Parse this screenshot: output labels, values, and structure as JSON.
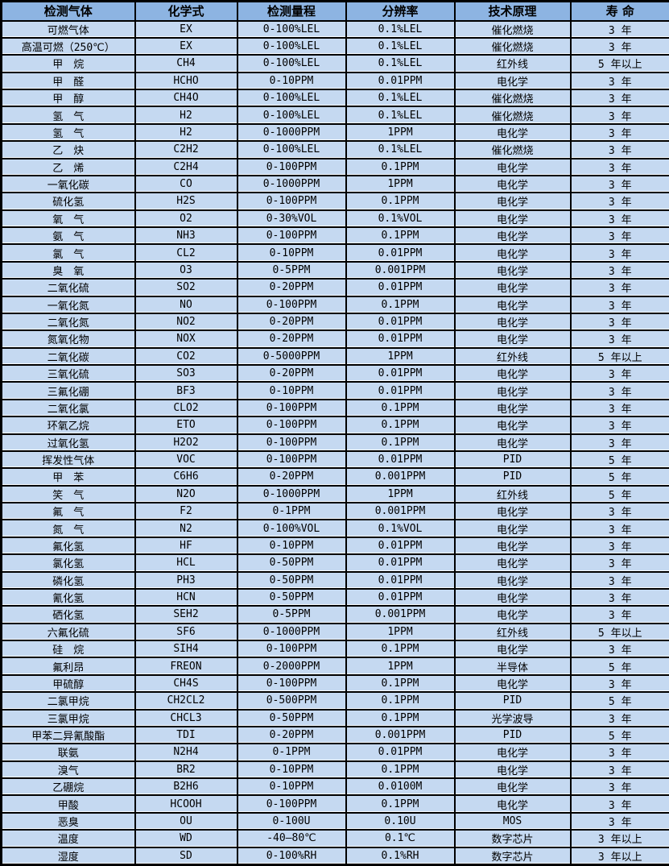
{
  "colors": {
    "header_bg": "#8db4e2",
    "row_bg": "#c5d9f1",
    "border": "#000000",
    "text": "#000000"
  },
  "table": {
    "columns": [
      "检测气体",
      "化学式",
      "检测量程",
      "分辨率",
      "技术原理",
      "寿 命"
    ],
    "rows": [
      [
        "可燃气体",
        "EX",
        "0-100%LEL",
        "0.1%LEL",
        "催化燃烧",
        "3 年"
      ],
      [
        "高温可燃（250℃）",
        "EX",
        "0-100%LEL",
        "0.1%LEL",
        "催化燃烧",
        "3 年"
      ],
      [
        "甲　烷",
        "CH4",
        "0-100%LEL",
        "0.1%LEL",
        "红外线",
        "5 年以上"
      ],
      [
        "甲　醛",
        "HCHO",
        "0-10PPM",
        "0.01PPM",
        "电化学",
        "3 年"
      ],
      [
        "甲　醇",
        "CH4O",
        "0-100%LEL",
        "0.1%LEL",
        "催化燃烧",
        "3 年"
      ],
      [
        "氢　气",
        "H2",
        "0-100%LEL",
        "0.1%LEL",
        "催化燃烧",
        "3 年"
      ],
      [
        "氢　气",
        "H2",
        "0-1000PPM",
        "1PPM",
        "电化学",
        "3 年"
      ],
      [
        "乙　炔",
        "C2H2",
        "0-100%LEL",
        "0.1%LEL",
        "催化燃烧",
        "3 年"
      ],
      [
        "乙　烯",
        "C2H4",
        "0-100PPM",
        "0.1PPM",
        "电化学",
        "3 年"
      ],
      [
        "一氧化碳",
        "CO",
        "0-1000PPM",
        "1PPM",
        "电化学",
        "3 年"
      ],
      [
        "硫化氢",
        "H2S",
        "0-100PPM",
        "0.1PPM",
        "电化学",
        "3 年"
      ],
      [
        "氧　气",
        "O2",
        "0-30%VOL",
        "0.1%VOL",
        "电化学",
        "3 年"
      ],
      [
        "氨　气",
        "NH3",
        "0-100PPM",
        "0.1PPM",
        "电化学",
        "3 年"
      ],
      [
        "氯　气",
        "CL2",
        "0-10PPM",
        "0.01PPM",
        "电化学",
        "3 年"
      ],
      [
        "臭　氧",
        "O3",
        "0-5PPM",
        "0.001PPM",
        "电化学",
        "3 年"
      ],
      [
        "二氧化硫",
        "SO2",
        "0-20PPM",
        "0.01PPM",
        "电化学",
        "3 年"
      ],
      [
        "一氧化氮",
        "NO",
        "0-100PPM",
        "0.1PPM",
        "电化学",
        "3 年"
      ],
      [
        "二氧化氮",
        "NO2",
        "0-20PPM",
        "0.01PPM",
        "电化学",
        "3 年"
      ],
      [
        "氮氧化物",
        "NOX",
        "0-20PPM",
        "0.01PPM",
        "电化学",
        "3 年"
      ],
      [
        "二氧化碳",
        "CO2",
        "0-5000PPM",
        "1PPM",
        "红外线",
        "5 年以上"
      ],
      [
        "三氧化硫",
        "SO3",
        "0-20PPM",
        "0.01PPM",
        "电化学",
        "3 年"
      ],
      [
        "三氟化硼",
        "BF3",
        "0-10PPM",
        "0.01PPM",
        "电化学",
        "3 年"
      ],
      [
        "二氧化氯",
        "CLO2",
        "0-100PPM",
        "0.1PPM",
        "电化学",
        "3 年"
      ],
      [
        "环氧乙烷",
        "ETO",
        "0-100PPM",
        "0.1PPM",
        "电化学",
        "3 年"
      ],
      [
        "过氧化氢",
        "H2O2",
        "0-100PPM",
        "0.1PPM",
        "电化学",
        "3 年"
      ],
      [
        "挥发性气体",
        "VOC",
        "0-100PPM",
        "0.01PPM",
        "PID",
        "5 年"
      ],
      [
        "甲　苯",
        "C6H6",
        "0-20PPM",
        "0.001PPM",
        "PID",
        "5 年"
      ],
      [
        "笑　气",
        "N2O",
        "0-1000PPM",
        "1PPM",
        "红外线",
        "5 年"
      ],
      [
        "氟　气",
        "F2",
        "0-1PPM",
        "0.001PPM",
        "电化学",
        "3 年"
      ],
      [
        "氮　气",
        "N2",
        "0-100%VOL",
        "0.1%VOL",
        "电化学",
        "3 年"
      ],
      [
        "氟化氢",
        "HF",
        "0-10PPM",
        "0.01PPM",
        "电化学",
        "3 年"
      ],
      [
        "氯化氢",
        "HCL",
        "0-50PPM",
        "0.01PPM",
        "电化学",
        "3 年"
      ],
      [
        "磷化氢",
        "PH3",
        "0-50PPM",
        "0.01PPM",
        "电化学",
        "3 年"
      ],
      [
        "氰化氢",
        "HCN",
        "0-50PPM",
        "0.01PPM",
        "电化学",
        "3 年"
      ],
      [
        "硒化氢",
        "SEH2",
        "0-5PPM",
        "0.001PPM",
        "电化学",
        "3 年"
      ],
      [
        "六氟化硫",
        "SF6",
        "0-1000PPM",
        "1PPM",
        "红外线",
        "5 年以上"
      ],
      [
        "硅　烷",
        "SIH4",
        "0-100PPM",
        "0.1PPM",
        "电化学",
        "3 年"
      ],
      [
        "氟利昂",
        "FREON",
        "0-2000PPM",
        "1PPM",
        "半导体",
        "5 年"
      ],
      [
        "甲硫醇",
        "CH4S",
        "0-100PPM",
        "0.1PPM",
        "电化学",
        "3 年"
      ],
      [
        "二氯甲烷",
        "CH2CL2",
        "0-500PPM",
        "0.1PPM",
        "PID",
        "5 年"
      ],
      [
        "三氯甲烷",
        "CHCL3",
        "0-50PPM",
        "0.1PPM",
        "光学波导",
        "3 年"
      ],
      [
        "甲苯二异氰酸酯",
        "TDI",
        "0-20PPM",
        "0.001PPM",
        "PID",
        "5 年"
      ],
      [
        "联氨",
        "N2H4",
        "0-1PPM",
        "0.01PPM",
        "电化学",
        "3 年"
      ],
      [
        "溴气",
        "BR2",
        "0-10PPM",
        "0.1PPM",
        "电化学",
        "3 年"
      ],
      [
        "乙硼烷",
        "B2H6",
        "0-10PPM",
        "0.0100M",
        "电化学",
        "3 年"
      ],
      [
        "甲酸",
        "HCOOH",
        "0-100PPM",
        "0.1PPM",
        "电化学",
        "3 年"
      ],
      [
        "恶臭",
        "OU",
        "0-100U",
        "0.10U",
        "MOS",
        "3 年"
      ],
      [
        "温度",
        "WD",
        "-40—80℃",
        "0.1℃",
        "数字芯片",
        "3 年以上"
      ],
      [
        "湿度",
        "SD",
        "0-100%RH",
        "0.1%RH",
        "数字芯片",
        "3 年以上"
      ]
    ]
  }
}
